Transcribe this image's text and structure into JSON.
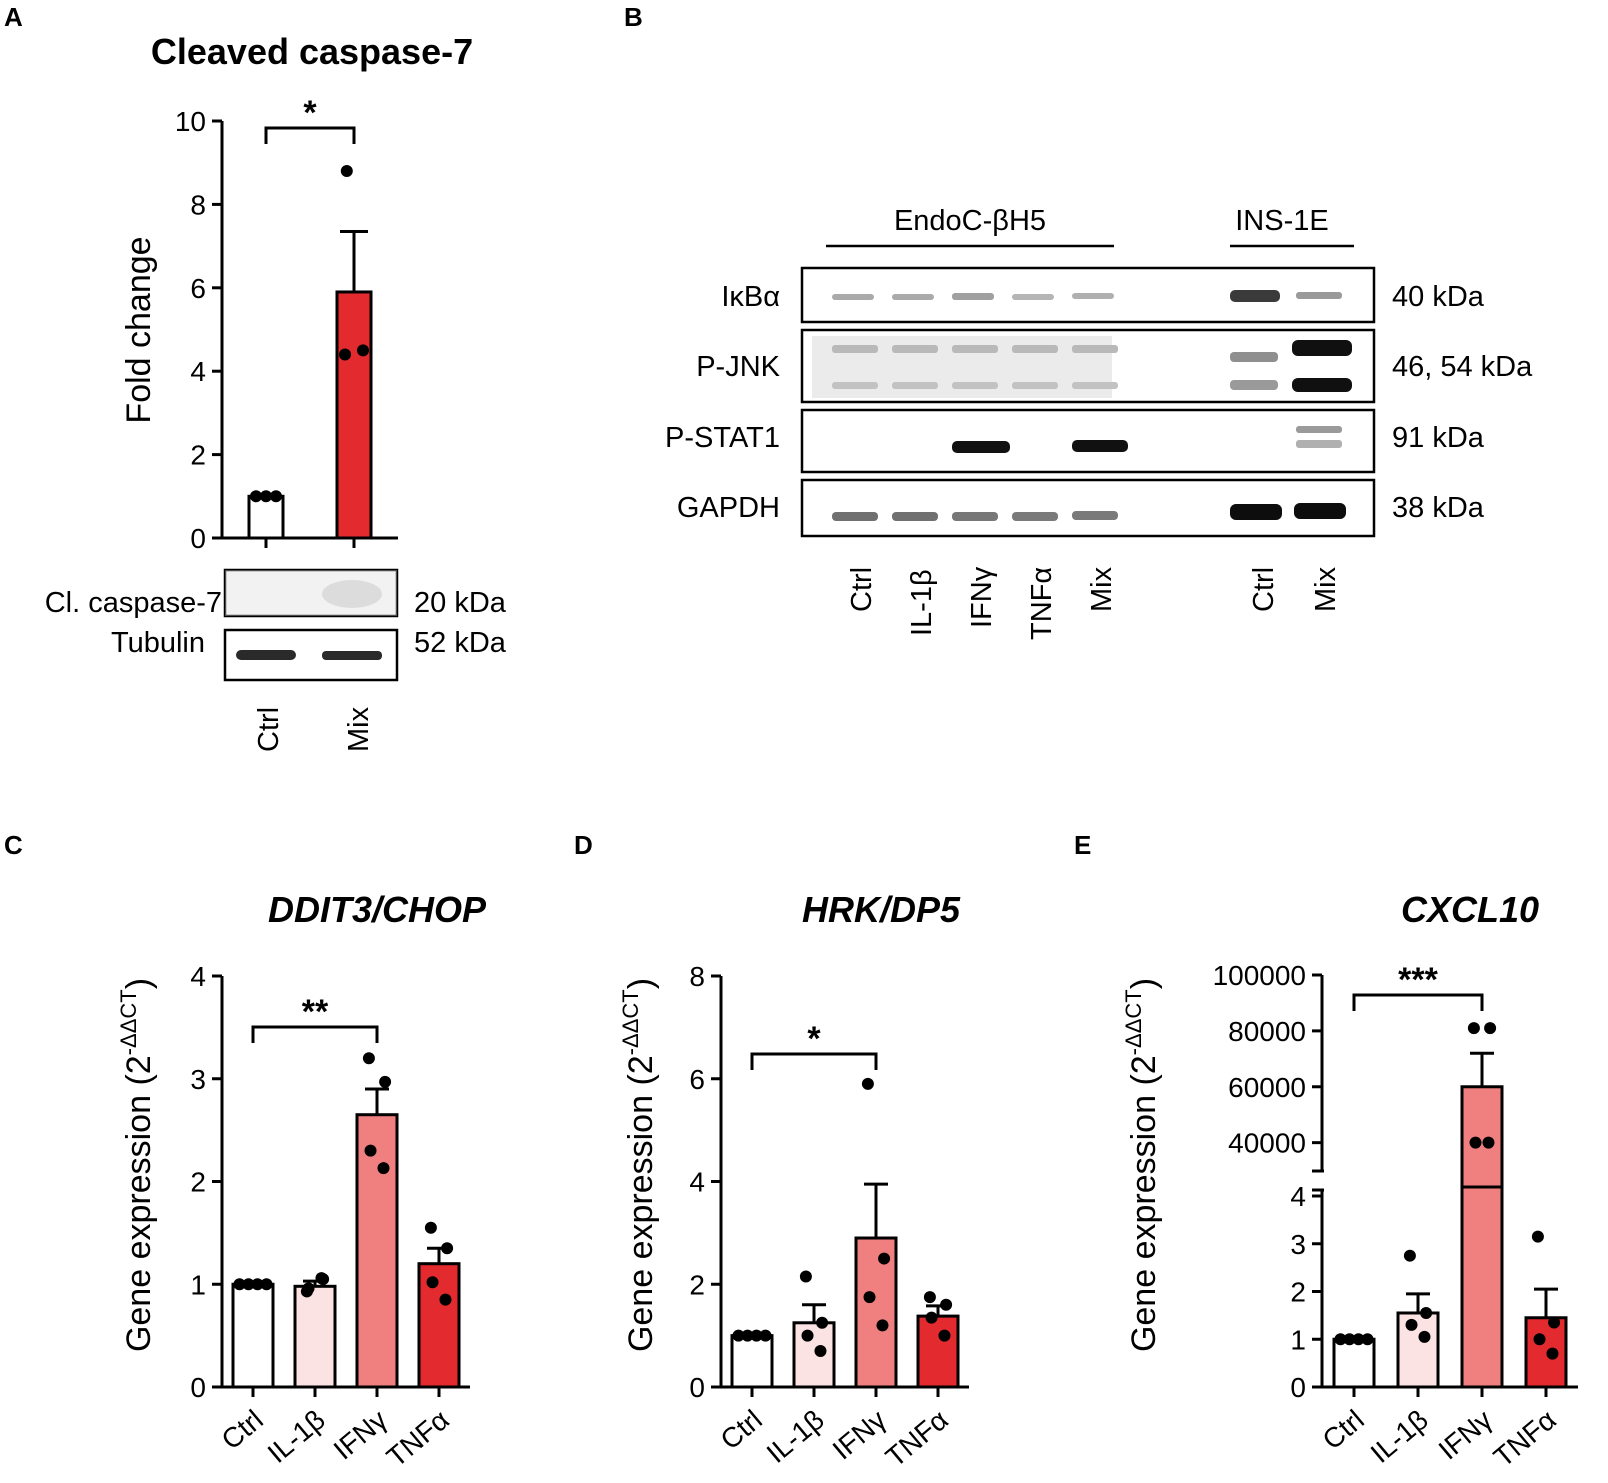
{
  "colors": {
    "ctrl": "#ffffff",
    "il1b": "#fbe3e4",
    "ifng": "#f08080",
    "tnfa": "#e32a2e",
    "mix": "#e32a2e"
  },
  "panel_a": {
    "label": "A",
    "blot_rows": [
      "Cl. caspase-7",
      "Tubulin"
    ],
    "blot_sizes": [
      "20 kDa",
      "52 kDa"
    ],
    "lanes": [
      "Ctrl",
      "Mix"
    ]
  },
  "panel_b": {
    "label": "B",
    "group_labels": [
      "EndoC-βH5",
      "INS-1E"
    ],
    "rows": [
      "IκBα",
      "P-JNK",
      "P-STAT1",
      "GAPDH"
    ],
    "sizes": [
      "40 kDa",
      "46, 54 kDa",
      "91 kDa",
      "38 kDa"
    ],
    "lanes": [
      "Ctrl",
      "IL-1β",
      "IFNγ",
      "TNFα",
      "Mix",
      "Ctrl",
      "Mix"
    ]
  },
  "panel_c": {
    "label": "C"
  },
  "panel_d": {
    "label": "D"
  },
  "panel_e": {
    "label": "E"
  },
  "chart_data": [
    {
      "id": "A",
      "type": "bar",
      "title": "Cleaved caspase-7",
      "ylabel": "Fold change",
      "categories": [
        "Ctrl",
        "Mix"
      ],
      "values": [
        1.0,
        5.9
      ],
      "sem": [
        0.0,
        1.45
      ],
      "points": [
        [
          1.0,
          1.0,
          1.0
        ],
        [
          4.4,
          4.5,
          8.8
        ]
      ],
      "ylim": [
        0,
        10
      ],
      "yticks": [
        "0",
        "2",
        "4",
        "6",
        "8",
        "10"
      ],
      "significance": [
        {
          "from": 0,
          "to": 1,
          "label": "*"
        }
      ]
    },
    {
      "id": "C",
      "type": "bar",
      "title": "DDIT3/CHOP",
      "ylabel": "Gene expression (2",
      "ylabel_sup": "-ΔΔCT",
      "ylabel_close": ")",
      "categories": [
        "Ctrl",
        "IL-1β",
        "IFNγ",
        "TNFα"
      ],
      "values": [
        1.0,
        0.98,
        2.65,
        1.2
      ],
      "sem": [
        0.0,
        0.05,
        0.25,
        0.15
      ],
      "points": [
        [
          1.0,
          1.0,
          1.0,
          1.0
        ],
        [
          0.93,
          1.05,
          0.96,
          1.06
        ],
        [
          3.2,
          2.97,
          2.3,
          2.13
        ],
        [
          1.55,
          1.35,
          1.02,
          0.85
        ]
      ],
      "ylim": [
        0,
        4
      ],
      "yticks": [
        "0",
        "1",
        "2",
        "3",
        "4"
      ],
      "significance": [
        {
          "from": 0,
          "to": 2,
          "label": "**"
        }
      ]
    },
    {
      "id": "D",
      "type": "bar",
      "title": "HRK/DP5",
      "ylabel": "Gene expression (2",
      "ylabel_sup": "-ΔΔCT",
      "ylabel_close": ")",
      "categories": [
        "Ctrl",
        "IL-1β",
        "IFNγ",
        "TNFα"
      ],
      "values": [
        1.0,
        1.25,
        2.9,
        1.38
      ],
      "sem": [
        0.0,
        0.35,
        1.05,
        0.2
      ],
      "points": [
        [
          1.0,
          1.0,
          1.0,
          1.0
        ],
        [
          2.15,
          1.25,
          1.0,
          0.7
        ],
        [
          5.9,
          2.5,
          1.75,
          1.2
        ],
        [
          1.75,
          1.6,
          1.35,
          1.0
        ]
      ],
      "ylim": [
        0,
        8
      ],
      "yticks": [
        "0",
        "2",
        "4",
        "6",
        "8"
      ],
      "significance": [
        {
          "from": 0,
          "to": 2,
          "label": "*"
        }
      ]
    },
    {
      "id": "E",
      "type": "bar",
      "title": "CXCL10",
      "ylabel": "Gene expression (2",
      "ylabel_sup": "-ΔΔCT",
      "ylabel_close": ")",
      "categories": [
        "Ctrl",
        "IL-1β",
        "IFNγ",
        "TNFα"
      ],
      "values": [
        1.0,
        1.55,
        60000,
        1.45
      ],
      "sem": [
        0.0,
        0.4,
        12000,
        0.6
      ],
      "points": [
        [
          1.0,
          1.0,
          1.0,
          1.0
        ],
        [
          2.75,
          1.55,
          1.3,
          1.05
        ],
        [
          81000,
          81000,
          40000,
          40000
        ],
        [
          3.15,
          1.35,
          1.0,
          0.7
        ]
      ],
      "broken_axis": {
        "lower": [
          0,
          4
        ],
        "upper": [
          32000,
          100000
        ]
      },
      "yticks_lower": [
        "0",
        "1",
        "2",
        "3",
        "4"
      ],
      "yticks_upper": [
        "40000",
        "60000",
        "80000",
        "100000"
      ],
      "significance": [
        {
          "from": 0,
          "to": 2,
          "label": "***"
        }
      ]
    }
  ]
}
